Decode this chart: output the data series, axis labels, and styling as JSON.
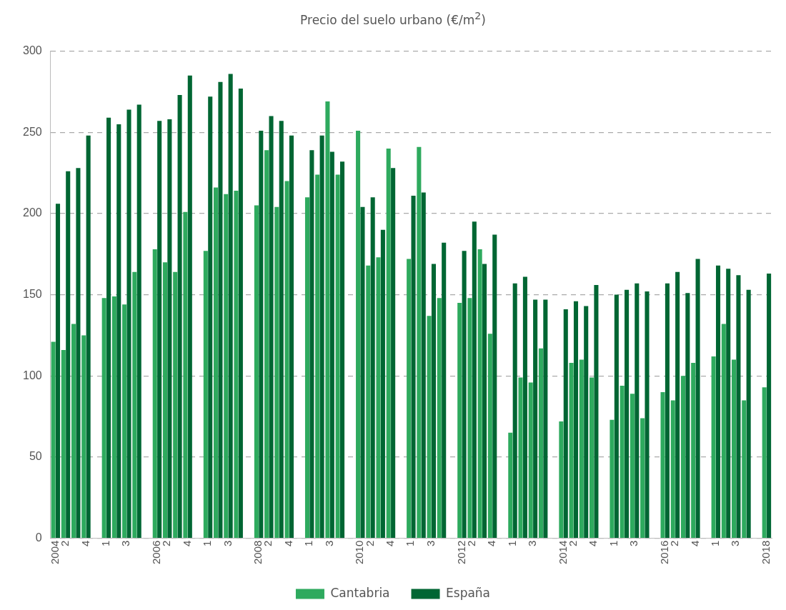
{
  "chart_data": {
    "type": "bar",
    "title": "Precio del suelo urbano (€/m$^{2}$)",
    "categories": [
      "2004",
      "2",
      null,
      "4",
      null,
      "1",
      null,
      "3",
      null,
      null,
      "2006",
      "2",
      null,
      "4",
      null,
      "1",
      null,
      "3",
      null,
      null,
      "2008",
      "2",
      null,
      "4",
      null,
      "1",
      null,
      "3",
      null,
      null,
      "2010",
      "2",
      null,
      "4",
      null,
      "1",
      null,
      "3",
      null,
      null,
      "2012",
      "2",
      null,
      "4",
      null,
      "1",
      null,
      "3",
      null,
      null,
      "2014",
      "2",
      null,
      "4",
      null,
      "1",
      null,
      "3",
      null,
      null,
      "2016",
      "2",
      null,
      "4",
      null,
      "1",
      null,
      "3",
      null,
      null,
      "2018"
    ],
    "series": [
      {
        "name": "Cantabria",
        "color": "#2eaa5e",
        "values": [
          121,
          116,
          132,
          125,
          null,
          148,
          149,
          144,
          164,
          null,
          178,
          170,
          164,
          201,
          null,
          177,
          216,
          212,
          214,
          null,
          205,
          239,
          204,
          220,
          null,
          210,
          224,
          269,
          224,
          null,
          251,
          168,
          173,
          240,
          null,
          172,
          241,
          137,
          148,
          null,
          145,
          148,
          178,
          126,
          null,
          65,
          99,
          96,
          117,
          null,
          72,
          108,
          110,
          99,
          null,
          73,
          94,
          89,
          74,
          null,
          90,
          85,
          100,
          108,
          null,
          112,
          132,
          110,
          85,
          null,
          93
        ]
      },
      {
        "name": "España",
        "color": "#006633",
        "values": [
          206,
          226,
          228,
          248,
          null,
          259,
          255,
          264,
          267,
          null,
          257,
          258,
          273,
          285,
          null,
          272,
          281,
          286,
          277,
          null,
          251,
          260,
          257,
          248,
          null,
          239,
          248,
          238,
          232,
          null,
          204,
          210,
          190,
          228,
          null,
          211,
          213,
          169,
          182,
          null,
          177,
          195,
          169,
          187,
          null,
          157,
          161,
          147,
          147,
          null,
          141,
          146,
          143,
          156,
          null,
          150,
          153,
          157,
          152,
          null,
          157,
          164,
          151,
          172,
          null,
          168,
          166,
          162,
          153,
          null,
          163
        ]
      }
    ],
    "ylim": [
      0,
      300
    ],
    "yticks": [
      0,
      50,
      100,
      150,
      200,
      250,
      300
    ],
    "grid": "y",
    "legend": "bottom"
  }
}
